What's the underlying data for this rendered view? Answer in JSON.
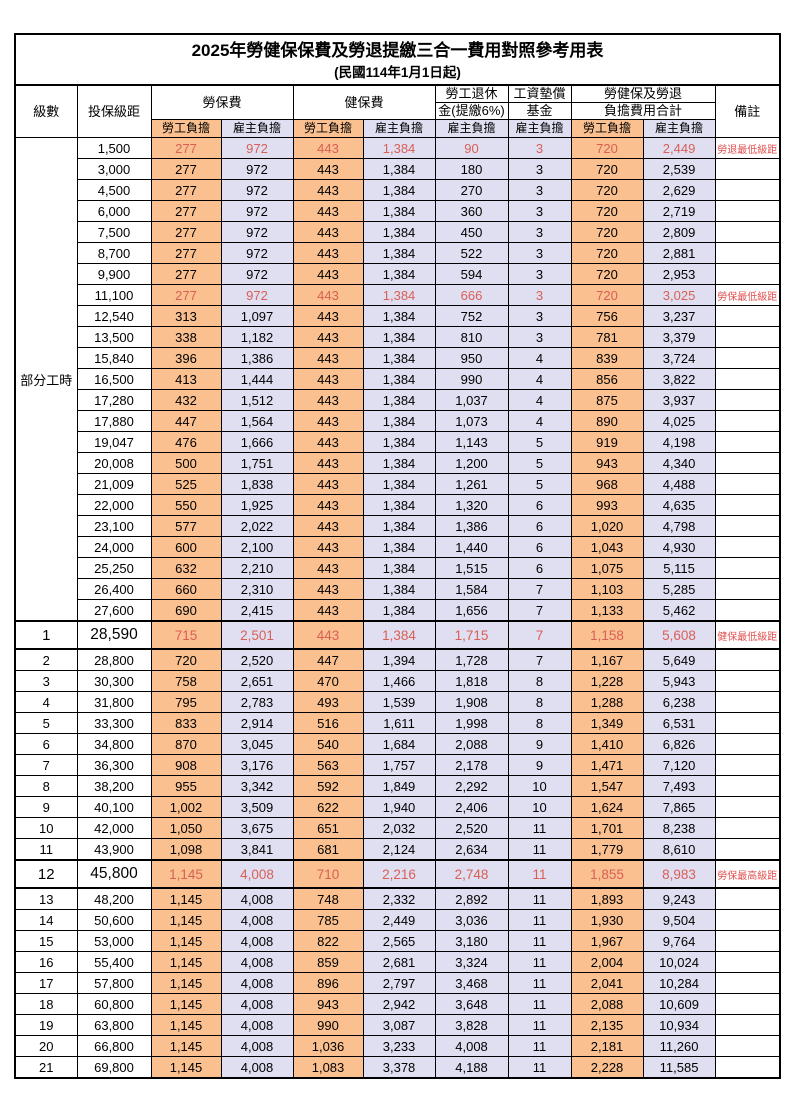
{
  "title": "2025年勞健保保費及勞退提繳三合一費用對照參考用表",
  "subtitle": "(民國114年1月1日起)",
  "header": {
    "level": "級數",
    "bracket": "投保級距",
    "labor_ins": "勞保費",
    "health_ins": "健保費",
    "pension_line1": "勞工退休",
    "pension_line2": "金(提繳6%)",
    "wage_fund_line1": "工資墊償",
    "wage_fund_line2": "基金",
    "total_line1": "勞健保及勞退",
    "total_line2": "負擔費用合計",
    "remark": "備註",
    "employee": "勞工負擔",
    "employer": "雇主負擔"
  },
  "colors": {
    "employee_bg": "#FAC090",
    "employer_bg": "#E0DFF2",
    "highlight_value_text": "#D95F55",
    "remark_text": "#E34F4F"
  },
  "group": {
    "label": "部分工時",
    "span": 23
  },
  "rows": [
    {
      "level": "",
      "bracket": "1,500",
      "v": [
        "277",
        "972",
        "443",
        "1,384",
        "90",
        "3",
        "720",
        "2,449"
      ],
      "remark": "勞退最低級距",
      "red": true,
      "big": false
    },
    {
      "level": "",
      "bracket": "3,000",
      "v": [
        "277",
        "972",
        "443",
        "1,384",
        "180",
        "3",
        "720",
        "2,539"
      ],
      "remark": "",
      "red": false,
      "big": false
    },
    {
      "level": "",
      "bracket": "4,500",
      "v": [
        "277",
        "972",
        "443",
        "1,384",
        "270",
        "3",
        "720",
        "2,629"
      ],
      "remark": "",
      "red": false,
      "big": false
    },
    {
      "level": "",
      "bracket": "6,000",
      "v": [
        "277",
        "972",
        "443",
        "1,384",
        "360",
        "3",
        "720",
        "2,719"
      ],
      "remark": "",
      "red": false,
      "big": false
    },
    {
      "level": "",
      "bracket": "7,500",
      "v": [
        "277",
        "972",
        "443",
        "1,384",
        "450",
        "3",
        "720",
        "2,809"
      ],
      "remark": "",
      "red": false,
      "big": false
    },
    {
      "level": "",
      "bracket": "8,700",
      "v": [
        "277",
        "972",
        "443",
        "1,384",
        "522",
        "3",
        "720",
        "2,881"
      ],
      "remark": "",
      "red": false,
      "big": false
    },
    {
      "level": "",
      "bracket": "9,900",
      "v": [
        "277",
        "972",
        "443",
        "1,384",
        "594",
        "3",
        "720",
        "2,953"
      ],
      "remark": "",
      "red": false,
      "big": false
    },
    {
      "level": "",
      "bracket": "11,100",
      "v": [
        "277",
        "972",
        "443",
        "1,384",
        "666",
        "3",
        "720",
        "3,025"
      ],
      "remark": "勞保最低級距",
      "red": true,
      "big": false
    },
    {
      "level": "",
      "bracket": "12,540",
      "v": [
        "313",
        "1,097",
        "443",
        "1,384",
        "752",
        "3",
        "756",
        "3,237"
      ],
      "remark": "",
      "red": false,
      "big": false
    },
    {
      "level": "",
      "bracket": "13,500",
      "v": [
        "338",
        "1,182",
        "443",
        "1,384",
        "810",
        "3",
        "781",
        "3,379"
      ],
      "remark": "",
      "red": false,
      "big": false
    },
    {
      "level": "",
      "bracket": "15,840",
      "v": [
        "396",
        "1,386",
        "443",
        "1,384",
        "950",
        "4",
        "839",
        "3,724"
      ],
      "remark": "",
      "red": false,
      "big": false
    },
    {
      "level": "",
      "bracket": "16,500",
      "v": [
        "413",
        "1,444",
        "443",
        "1,384",
        "990",
        "4",
        "856",
        "3,822"
      ],
      "remark": "",
      "red": false,
      "big": false
    },
    {
      "level": "",
      "bracket": "17,280",
      "v": [
        "432",
        "1,512",
        "443",
        "1,384",
        "1,037",
        "4",
        "875",
        "3,937"
      ],
      "remark": "",
      "red": false,
      "big": false
    },
    {
      "level": "",
      "bracket": "17,880",
      "v": [
        "447",
        "1,564",
        "443",
        "1,384",
        "1,073",
        "4",
        "890",
        "4,025"
      ],
      "remark": "",
      "red": false,
      "big": false
    },
    {
      "level": "",
      "bracket": "19,047",
      "v": [
        "476",
        "1,666",
        "443",
        "1,384",
        "1,143",
        "5",
        "919",
        "4,198"
      ],
      "remark": "",
      "red": false,
      "big": false
    },
    {
      "level": "",
      "bracket": "20,008",
      "v": [
        "500",
        "1,751",
        "443",
        "1,384",
        "1,200",
        "5",
        "943",
        "4,340"
      ],
      "remark": "",
      "red": false,
      "big": false
    },
    {
      "level": "",
      "bracket": "21,009",
      "v": [
        "525",
        "1,838",
        "443",
        "1,384",
        "1,261",
        "5",
        "968",
        "4,488"
      ],
      "remark": "",
      "red": false,
      "big": false
    },
    {
      "level": "",
      "bracket": "22,000",
      "v": [
        "550",
        "1,925",
        "443",
        "1,384",
        "1,320",
        "6",
        "993",
        "4,635"
      ],
      "remark": "",
      "red": false,
      "big": false
    },
    {
      "level": "",
      "bracket": "23,100",
      "v": [
        "577",
        "2,022",
        "443",
        "1,384",
        "1,386",
        "6",
        "1,020",
        "4,798"
      ],
      "remark": "",
      "red": false,
      "big": false
    },
    {
      "level": "",
      "bracket": "24,000",
      "v": [
        "600",
        "2,100",
        "443",
        "1,384",
        "1,440",
        "6",
        "1,043",
        "4,930"
      ],
      "remark": "",
      "red": false,
      "big": false
    },
    {
      "level": "",
      "bracket": "25,250",
      "v": [
        "632",
        "2,210",
        "443",
        "1,384",
        "1,515",
        "6",
        "1,075",
        "5,115"
      ],
      "remark": "",
      "red": false,
      "big": false
    },
    {
      "level": "",
      "bracket": "26,400",
      "v": [
        "660",
        "2,310",
        "443",
        "1,384",
        "1,584",
        "7",
        "1,103",
        "5,285"
      ],
      "remark": "",
      "red": false,
      "big": false
    },
    {
      "level": "",
      "bracket": "27,600",
      "v": [
        "690",
        "2,415",
        "443",
        "1,384",
        "1,656",
        "7",
        "1,133",
        "5,462"
      ],
      "remark": "",
      "red": false,
      "big": false
    },
    {
      "level": "1",
      "bracket": "28,590",
      "v": [
        "715",
        "2,501",
        "443",
        "1,384",
        "1,715",
        "7",
        "1,158",
        "5,608"
      ],
      "remark": "健保最低級距",
      "red": true,
      "big": true
    },
    {
      "level": "2",
      "bracket": "28,800",
      "v": [
        "720",
        "2,520",
        "447",
        "1,394",
        "1,728",
        "7",
        "1,167",
        "5,649"
      ],
      "remark": "",
      "red": false,
      "big": false
    },
    {
      "level": "3",
      "bracket": "30,300",
      "v": [
        "758",
        "2,651",
        "470",
        "1,466",
        "1,818",
        "8",
        "1,228",
        "5,943"
      ],
      "remark": "",
      "red": false,
      "big": false
    },
    {
      "level": "4",
      "bracket": "31,800",
      "v": [
        "795",
        "2,783",
        "493",
        "1,539",
        "1,908",
        "8",
        "1,288",
        "6,238"
      ],
      "remark": "",
      "red": false,
      "big": false
    },
    {
      "level": "5",
      "bracket": "33,300",
      "v": [
        "833",
        "2,914",
        "516",
        "1,611",
        "1,998",
        "8",
        "1,349",
        "6,531"
      ],
      "remark": "",
      "red": false,
      "big": false
    },
    {
      "level": "6",
      "bracket": "34,800",
      "v": [
        "870",
        "3,045",
        "540",
        "1,684",
        "2,088",
        "9",
        "1,410",
        "6,826"
      ],
      "remark": "",
      "red": false,
      "big": false
    },
    {
      "level": "7",
      "bracket": "36,300",
      "v": [
        "908",
        "3,176",
        "563",
        "1,757",
        "2,178",
        "9",
        "1,471",
        "7,120"
      ],
      "remark": "",
      "red": false,
      "big": false
    },
    {
      "level": "8",
      "bracket": "38,200",
      "v": [
        "955",
        "3,342",
        "592",
        "1,849",
        "2,292",
        "10",
        "1,547",
        "7,493"
      ],
      "remark": "",
      "red": false,
      "big": false
    },
    {
      "level": "9",
      "bracket": "40,100",
      "v": [
        "1,002",
        "3,509",
        "622",
        "1,940",
        "2,406",
        "10",
        "1,624",
        "7,865"
      ],
      "remark": "",
      "red": false,
      "big": false
    },
    {
      "level": "10",
      "bracket": "42,000",
      "v": [
        "1,050",
        "3,675",
        "651",
        "2,032",
        "2,520",
        "11",
        "1,701",
        "8,238"
      ],
      "remark": "",
      "red": false,
      "big": false
    },
    {
      "level": "11",
      "bracket": "43,900",
      "v": [
        "1,098",
        "3,841",
        "681",
        "2,124",
        "2,634",
        "11",
        "1,779",
        "8,610"
      ],
      "remark": "",
      "red": false,
      "big": false
    },
    {
      "level": "12",
      "bracket": "45,800",
      "v": [
        "1,145",
        "4,008",
        "710",
        "2,216",
        "2,748",
        "11",
        "1,855",
        "8,983"
      ],
      "remark": "勞保最高級距",
      "red": true,
      "big": true
    },
    {
      "level": "13",
      "bracket": "48,200",
      "v": [
        "1,145",
        "4,008",
        "748",
        "2,332",
        "2,892",
        "11",
        "1,893",
        "9,243"
      ],
      "remark": "",
      "red": false,
      "big": false
    },
    {
      "level": "14",
      "bracket": "50,600",
      "v": [
        "1,145",
        "4,008",
        "785",
        "2,449",
        "3,036",
        "11",
        "1,930",
        "9,504"
      ],
      "remark": "",
      "red": false,
      "big": false
    },
    {
      "level": "15",
      "bracket": "53,000",
      "v": [
        "1,145",
        "4,008",
        "822",
        "2,565",
        "3,180",
        "11",
        "1,967",
        "9,764"
      ],
      "remark": "",
      "red": false,
      "big": false
    },
    {
      "level": "16",
      "bracket": "55,400",
      "v": [
        "1,145",
        "4,008",
        "859",
        "2,681",
        "3,324",
        "11",
        "2,004",
        "10,024"
      ],
      "remark": "",
      "red": false,
      "big": false
    },
    {
      "level": "17",
      "bracket": "57,800",
      "v": [
        "1,145",
        "4,008",
        "896",
        "2,797",
        "3,468",
        "11",
        "2,041",
        "10,284"
      ],
      "remark": "",
      "red": false,
      "big": false
    },
    {
      "level": "18",
      "bracket": "60,800",
      "v": [
        "1,145",
        "4,008",
        "943",
        "2,942",
        "3,648",
        "11",
        "2,088",
        "10,609"
      ],
      "remark": "",
      "red": false,
      "big": false
    },
    {
      "level": "19",
      "bracket": "63,800",
      "v": [
        "1,145",
        "4,008",
        "990",
        "3,087",
        "3,828",
        "11",
        "2,135",
        "10,934"
      ],
      "remark": "",
      "red": false,
      "big": false
    },
    {
      "level": "20",
      "bracket": "66,800",
      "v": [
        "1,145",
        "4,008",
        "1,036",
        "3,233",
        "4,008",
        "11",
        "2,181",
        "11,260"
      ],
      "remark": "",
      "red": false,
      "big": false
    },
    {
      "level": "21",
      "bracket": "69,800",
      "v": [
        "1,145",
        "4,008",
        "1,083",
        "3,378",
        "4,188",
        "11",
        "2,228",
        "11,585"
      ],
      "remark": "",
      "red": false,
      "big": false
    }
  ]
}
